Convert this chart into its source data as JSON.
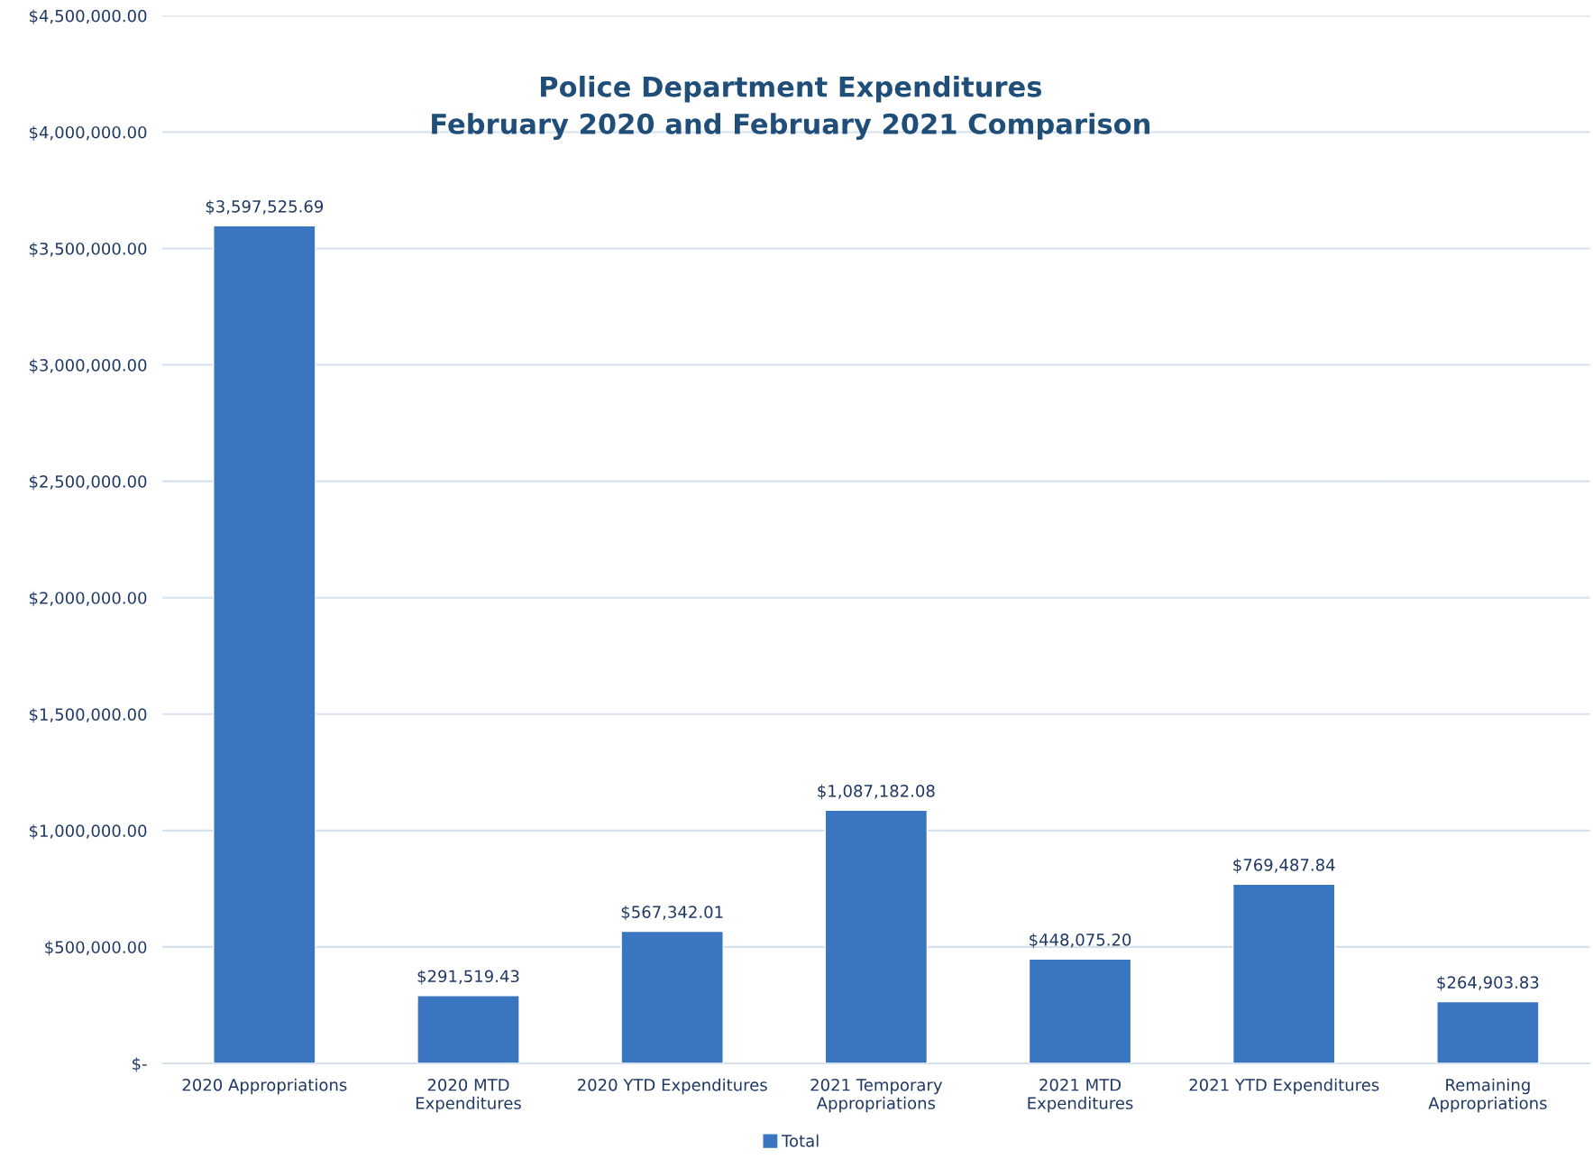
{
  "chart_data": {
    "type": "bar",
    "title": "Police Department Expenditures\nFebruary 2020 and February 2021 Comparison",
    "categories": [
      "2020 Appropriations",
      "2020 MTD\nExpenditures",
      "2020 YTD Expenditures",
      "2021 Temporary\nAppropriations",
      "2021 MTD\nExpenditures",
      "2021 YTD Expenditures",
      "Remaining\nAppropriations"
    ],
    "series": [
      {
        "name": "Total",
        "color": "#3a75c0",
        "values": [
          3597525.69,
          291519.43,
          567342.01,
          1087182.08,
          448075.2,
          769487.84,
          264903.83
        ],
        "value_labels": [
          "$3,597,525.69",
          "$291,519.43",
          "$567,342.01",
          "$1,087,182.08",
          "$448,075.20",
          "$769,487.84",
          "$264,903.83"
        ]
      }
    ],
    "ylim": [
      0,
      4500000
    ],
    "yticks": [
      {
        "value": 0,
        "label": "$-"
      },
      {
        "value": 500000,
        "label": "$500,000.00"
      },
      {
        "value": 1000000,
        "label": "$1,000,000.00"
      },
      {
        "value": 1500000,
        "label": "$1,500,000.00"
      },
      {
        "value": 2000000,
        "label": "$2,000,000.00"
      },
      {
        "value": 2500000,
        "label": "$2,500,000.00"
      },
      {
        "value": 3000000,
        "label": "$3,000,000.00"
      },
      {
        "value": 3500000,
        "label": "$3,500,000.00"
      },
      {
        "value": 4000000,
        "label": "$4,000,000.00"
      },
      {
        "value": 4500000,
        "label": "$4,500,000.00"
      }
    ],
    "grid": "y",
    "legend": "bottom"
  }
}
